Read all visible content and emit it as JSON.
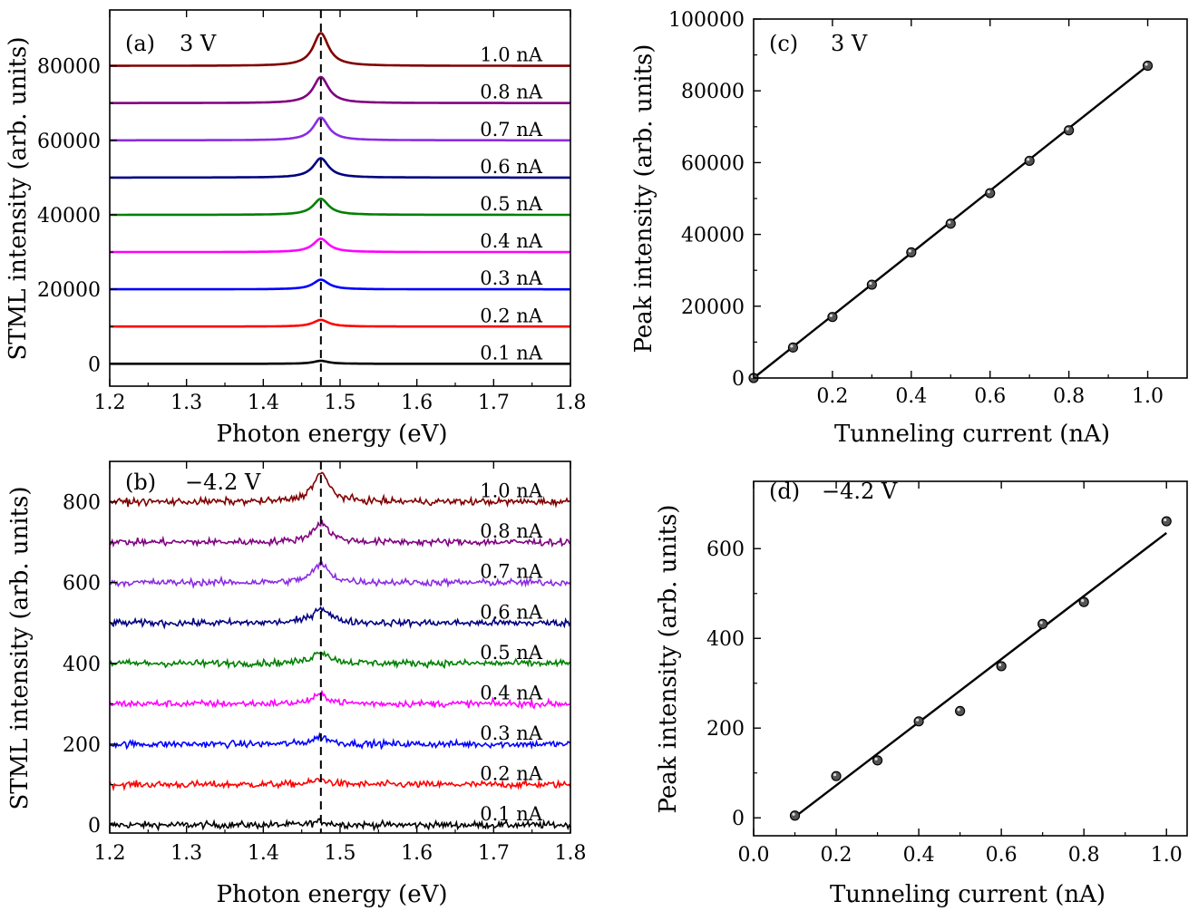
{
  "chart_data": [
    {
      "id": "a",
      "type": "line",
      "panel_label": "(a)",
      "condition": "3 V",
      "xlabel": "Photon energy (eV)",
      "ylabel": "STML intensity (arb. units)",
      "xlim": [
        1.2,
        1.8
      ],
      "ylim": [
        -6000,
        95000
      ],
      "xticks": [
        1.2,
        1.3,
        1.4,
        1.5,
        1.6,
        1.7,
        1.8
      ],
      "xtick_labels": [
        "1.2",
        "1.3",
        "1.4",
        "1.5",
        "1.6",
        "1.7",
        "1.8"
      ],
      "yticks": [
        0,
        20000,
        40000,
        60000,
        80000
      ],
      "ytick_labels": [
        "0",
        "20000",
        "40000",
        "60000",
        "80000"
      ],
      "peak_energy": 1.475,
      "peak_width": 0.012,
      "noise": 0,
      "series": [
        {
          "name": "0.1 nA",
          "offset": 0,
          "peak_height": 800,
          "color": "#000000"
        },
        {
          "name": "0.2 nA",
          "offset": 10000,
          "peak_height": 1800,
          "color": "#ff0000"
        },
        {
          "name": "0.3 nA",
          "offset": 20000,
          "peak_height": 2600,
          "color": "#0000ff"
        },
        {
          "name": "0.4 nA",
          "offset": 30000,
          "peak_height": 3600,
          "color": "#ff00ff"
        },
        {
          "name": "0.5 nA",
          "offset": 40000,
          "peak_height": 4300,
          "color": "#008000"
        },
        {
          "name": "0.6 nA",
          "offset": 50000,
          "peak_height": 5200,
          "color": "#000080"
        },
        {
          "name": "0.7 nA",
          "offset": 60000,
          "peak_height": 6100,
          "color": "#8b2be2"
        },
        {
          "name": "0.8 nA",
          "offset": 70000,
          "peak_height": 7000,
          "color": "#800080"
        },
        {
          "name": "1.0 nA",
          "offset": 80000,
          "peak_height": 8800,
          "color": "#800000"
        }
      ]
    },
    {
      "id": "b",
      "type": "line",
      "panel_label": "(b)",
      "condition": "−4.2 V",
      "xlabel": "Photon energy (eV)",
      "ylabel": "STML intensity (arb. units)",
      "xlim": [
        1.2,
        1.8
      ],
      "ylim": [
        -20,
        900
      ],
      "xticks": [
        1.2,
        1.3,
        1.4,
        1.5,
        1.6,
        1.7,
        1.8
      ],
      "xtick_labels": [
        "1.2",
        "1.3",
        "1.4",
        "1.5",
        "1.6",
        "1.7",
        "1.8"
      ],
      "yticks": [
        0,
        200,
        400,
        600,
        800
      ],
      "ytick_labels": [
        "0",
        "200",
        "400",
        "600",
        "800"
      ],
      "peak_energy": 1.475,
      "peak_width": 0.013,
      "noise": 6,
      "series": [
        {
          "name": "0.1 nA",
          "offset": 0,
          "peak_height": 8,
          "color": "#000000"
        },
        {
          "name": "0.2 nA",
          "offset": 100,
          "peak_height": 12,
          "color": "#ff0000"
        },
        {
          "name": "0.3 nA",
          "offset": 200,
          "peak_height": 18,
          "color": "#0000ff"
        },
        {
          "name": "0.4 nA",
          "offset": 300,
          "peak_height": 22,
          "color": "#ff00ff"
        },
        {
          "name": "0.5 nA",
          "offset": 400,
          "peak_height": 30,
          "color": "#008000"
        },
        {
          "name": "0.6 nA",
          "offset": 500,
          "peak_height": 38,
          "color": "#000080"
        },
        {
          "name": "0.7 nA",
          "offset": 600,
          "peak_height": 45,
          "color": "#8b2be2"
        },
        {
          "name": "0.8 nA",
          "offset": 700,
          "peak_height": 48,
          "color": "#800080"
        },
        {
          "name": "1.0 nA",
          "offset": 800,
          "peak_height": 70,
          "color": "#800000"
        }
      ]
    },
    {
      "id": "c",
      "type": "scatter",
      "panel_label": "(c)",
      "condition": "3 V",
      "xlabel": "Tunneling current (nA)",
      "ylabel": "Peak intensity (arb. units)",
      "xlim": [
        0,
        1.1
      ],
      "ylim": [
        0,
        100000
      ],
      "xticks": [
        0.2,
        0.4,
        0.6,
        0.8,
        1.0
      ],
      "xtick_labels": [
        "0.2",
        "0.4",
        "0.6",
        "0.8",
        "1.0"
      ],
      "yticks": [
        0,
        20000,
        40000,
        60000,
        80000,
        100000
      ],
      "ytick_labels": [
        "0",
        "20000",
        "40000",
        "60000",
        "80000",
        "100000"
      ],
      "x": [
        0,
        0.1,
        0.2,
        0.3,
        0.4,
        0.5,
        0.6,
        0.7,
        0.8,
        1.0
      ],
      "y": [
        0,
        8500,
        17000,
        26000,
        35000,
        43000,
        51500,
        60500,
        69000,
        87000
      ],
      "fit": {
        "x": [
          0,
          1.0
        ],
        "y": [
          0,
          87000
        ]
      }
    },
    {
      "id": "d",
      "type": "scatter",
      "panel_label": "(d)",
      "condition": "−4.2 V",
      "xlabel": "Tunneling current (nA)",
      "ylabel": "Peak intensity (arb. units)",
      "xlim": [
        0,
        1.05
      ],
      "ylim": [
        -40,
        750
      ],
      "xticks": [
        0.0,
        0.2,
        0.4,
        0.6,
        0.8,
        1.0
      ],
      "xtick_labels": [
        "0.0",
        "0.2",
        "0.4",
        "0.6",
        "0.8",
        "1.0"
      ],
      "yticks": [
        0,
        200,
        400,
        600
      ],
      "ytick_labels": [
        "0",
        "200",
        "400",
        "600"
      ],
      "x": [
        0.1,
        0.2,
        0.3,
        0.4,
        0.5,
        0.6,
        0.7,
        0.8,
        1.0
      ],
      "y": [
        5,
        93,
        128,
        215,
        238,
        338,
        432,
        481,
        661
      ],
      "fit": {
        "x": [
          0.1,
          1.0
        ],
        "y": [
          2,
          635
        ]
      }
    }
  ]
}
